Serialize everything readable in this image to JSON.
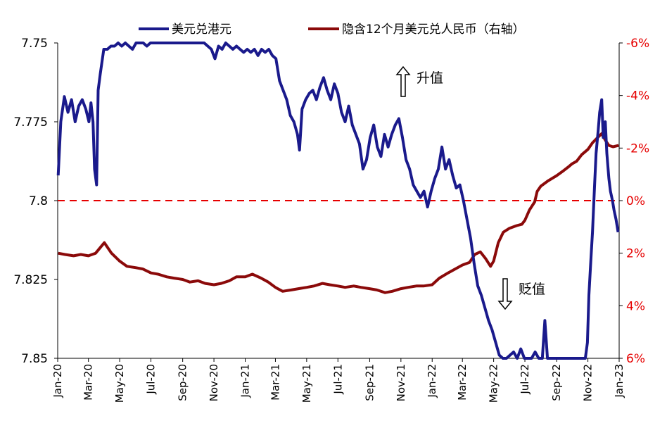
{
  "chart_data": {
    "type": "line",
    "legend": {
      "placement": "top",
      "entries": [
        "美元兑港元",
        "隐含12个月美元兑人民币（右轴）"
      ]
    },
    "colors": {
      "usdhkd": "#1a1a8c",
      "implied": "#8b0a0a",
      "zero_line": "#e60000",
      "right_axis_text": "#e60000"
    },
    "left_axis": {
      "ylim": [
        7.75,
        7.85
      ],
      "inverted": true,
      "ticks": [
        7.75,
        7.775,
        7.8,
        7.825,
        7.85
      ],
      "tick_labels": [
        "7.75",
        "7.775",
        "7.8",
        "7.825",
        "7.85"
      ]
    },
    "right_axis": {
      "ylim": [
        -6,
        6
      ],
      "inverted": true,
      "ticks": [
        -6,
        -4,
        -2,
        0,
        2,
        4,
        6
      ],
      "tick_labels": [
        "-6%",
        "-4%",
        "-2%",
        "0%",
        "2%",
        "4%",
        "6%"
      ]
    },
    "x_axis": {
      "range": [
        "2020-01",
        "2023-01"
      ],
      "tick_labels": [
        "Jan-20",
        "Mar-20",
        "May-20",
        "Jul-20",
        "Sep-20",
        "Nov-20",
        "Jan-21",
        "Mar-21",
        "May-21",
        "Jul-21",
        "Sep-21",
        "Nov-21",
        "Jan-22",
        "Mar-22",
        "May-22",
        "Jul-22",
        "Sep-22",
        "Nov-22",
        "Jan-23"
      ]
    },
    "reference_line": {
      "axis": "right",
      "value": 0
    },
    "annotations": [
      {
        "text": "升值",
        "arrow": "up"
      },
      {
        "text": "贬值",
        "arrow": "down"
      }
    ],
    "series": [
      {
        "name": "美元兑港元",
        "axis": "left",
        "points": [
          [
            "2020-01-02",
            7.792
          ],
          [
            "2020-01-07",
            7.775
          ],
          [
            "2020-01-14",
            7.767
          ],
          [
            "2020-01-21",
            7.772
          ],
          [
            "2020-01-28",
            7.768
          ],
          [
            "2020-02-04",
            7.775
          ],
          [
            "2020-02-11",
            7.77
          ],
          [
            "2020-02-18",
            7.768
          ],
          [
            "2020-02-25",
            7.771
          ],
          [
            "2020-03-02",
            7.775
          ],
          [
            "2020-03-06",
            7.769
          ],
          [
            "2020-03-10",
            7.775
          ],
          [
            "2020-03-13",
            7.79
          ],
          [
            "2020-03-17",
            7.795
          ],
          [
            "2020-03-20",
            7.765
          ],
          [
            "2020-03-24",
            7.76
          ],
          [
            "2020-03-31",
            7.752
          ],
          [
            "2020-04-07",
            7.752
          ],
          [
            "2020-04-14",
            7.751
          ],
          [
            "2020-04-21",
            7.751
          ],
          [
            "2020-04-28",
            7.75
          ],
          [
            "2020-05-05",
            7.751
          ],
          [
            "2020-05-12",
            7.75
          ],
          [
            "2020-05-19",
            7.751
          ],
          [
            "2020-05-26",
            7.752
          ],
          [
            "2020-06-02",
            7.75
          ],
          [
            "2020-06-09",
            7.75
          ],
          [
            "2020-06-16",
            7.75
          ],
          [
            "2020-06-23",
            7.751
          ],
          [
            "2020-06-30",
            7.75
          ],
          [
            "2020-07-07",
            7.75
          ],
          [
            "2020-07-14",
            7.75
          ],
          [
            "2020-07-21",
            7.75
          ],
          [
            "2020-07-28",
            7.75
          ],
          [
            "2020-08-04",
            7.75
          ],
          [
            "2020-08-18",
            7.75
          ],
          [
            "2020-09-01",
            7.75
          ],
          [
            "2020-09-15",
            7.75
          ],
          [
            "2020-09-29",
            7.75
          ],
          [
            "2020-10-13",
            7.75
          ],
          [
            "2020-10-27",
            7.752
          ],
          [
            "2020-11-03",
            7.755
          ],
          [
            "2020-11-10",
            7.751
          ],
          [
            "2020-11-17",
            7.752
          ],
          [
            "2020-11-24",
            7.75
          ],
          [
            "2020-12-01",
            7.751
          ],
          [
            "2020-12-08",
            7.752
          ],
          [
            "2020-12-15",
            7.751
          ],
          [
            "2020-12-22",
            7.752
          ],
          [
            "2020-12-29",
            7.753
          ],
          [
            "2021-01-05",
            7.752
          ],
          [
            "2021-01-12",
            7.753
          ],
          [
            "2021-01-19",
            7.752
          ],
          [
            "2021-01-26",
            7.754
          ],
          [
            "2021-02-02",
            7.752
          ],
          [
            "2021-02-09",
            7.753
          ],
          [
            "2021-02-16",
            7.752
          ],
          [
            "2021-02-23",
            7.754
          ],
          [
            "2021-03-02",
            7.755
          ],
          [
            "2021-03-09",
            7.762
          ],
          [
            "2021-03-16",
            7.765
          ],
          [
            "2021-03-23",
            7.768
          ],
          [
            "2021-03-30",
            7.773
          ],
          [
            "2021-04-06",
            7.775
          ],
          [
            "2021-04-13",
            7.779
          ],
          [
            "2021-04-17",
            7.784
          ],
          [
            "2021-04-22",
            7.771
          ],
          [
            "2021-04-29",
            7.768
          ],
          [
            "2021-05-06",
            7.766
          ],
          [
            "2021-05-13",
            7.765
          ],
          [
            "2021-05-20",
            7.768
          ],
          [
            "2021-05-27",
            7.764
          ],
          [
            "2021-06-03",
            7.761
          ],
          [
            "2021-06-10",
            7.765
          ],
          [
            "2021-06-17",
            7.768
          ],
          [
            "2021-06-24",
            7.763
          ],
          [
            "2021-07-01",
            7.766
          ],
          [
            "2021-07-08",
            7.772
          ],
          [
            "2021-07-15",
            7.775
          ],
          [
            "2021-07-22",
            7.77
          ],
          [
            "2021-07-29",
            7.776
          ],
          [
            "2021-08-05",
            7.779
          ],
          [
            "2021-08-12",
            7.782
          ],
          [
            "2021-08-19",
            7.79
          ],
          [
            "2021-08-26",
            7.787
          ],
          [
            "2021-09-02",
            7.78
          ],
          [
            "2021-09-09",
            7.776
          ],
          [
            "2021-09-16",
            7.783
          ],
          [
            "2021-09-23",
            7.786
          ],
          [
            "2021-09-30",
            7.779
          ],
          [
            "2021-10-07",
            7.783
          ],
          [
            "2021-10-14",
            7.779
          ],
          [
            "2021-10-21",
            7.776
          ],
          [
            "2021-10-28",
            7.774
          ],
          [
            "2021-11-04",
            7.78
          ],
          [
            "2021-11-11",
            7.787
          ],
          [
            "2021-11-18",
            7.79
          ],
          [
            "2021-11-25",
            7.795
          ],
          [
            "2021-12-02",
            7.797
          ],
          [
            "2021-12-09",
            7.799
          ],
          [
            "2021-12-16",
            7.797
          ],
          [
            "2021-12-23",
            7.802
          ],
          [
            "2021-12-30",
            7.797
          ],
          [
            "2022-01-06",
            7.793
          ],
          [
            "2022-01-13",
            7.79
          ],
          [
            "2022-01-20",
            7.783
          ],
          [
            "2022-01-27",
            7.79
          ],
          [
            "2022-02-03",
            7.787
          ],
          [
            "2022-02-10",
            7.792
          ],
          [
            "2022-02-17",
            7.796
          ],
          [
            "2022-02-24",
            7.795
          ],
          [
            "2022-03-03",
            7.8
          ],
          [
            "2022-03-10",
            7.806
          ],
          [
            "2022-03-17",
            7.812
          ],
          [
            "2022-03-24",
            7.82
          ],
          [
            "2022-03-31",
            7.827
          ],
          [
            "2022-04-07",
            7.83
          ],
          [
            "2022-04-14",
            7.834
          ],
          [
            "2022-04-21",
            7.838
          ],
          [
            "2022-04-28",
            7.841
          ],
          [
            "2022-05-05",
            7.845
          ],
          [
            "2022-05-12",
            7.849
          ],
          [
            "2022-05-19",
            7.85
          ],
          [
            "2022-05-26",
            7.85
          ],
          [
            "2022-06-02",
            7.849
          ],
          [
            "2022-06-09",
            7.848
          ],
          [
            "2022-06-16",
            7.85
          ],
          [
            "2022-06-23",
            7.847
          ],
          [
            "2022-06-30",
            7.85
          ],
          [
            "2022-07-07",
            7.85
          ],
          [
            "2022-07-14",
            7.85
          ],
          [
            "2022-07-21",
            7.848
          ],
          [
            "2022-07-28",
            7.85
          ],
          [
            "2022-08-04",
            7.85
          ],
          [
            "2022-08-09",
            7.838
          ],
          [
            "2022-08-14",
            7.85
          ],
          [
            "2022-08-25",
            7.85
          ],
          [
            "2022-09-08",
            7.85
          ],
          [
            "2022-09-22",
            7.85
          ],
          [
            "2022-10-06",
            7.85
          ],
          [
            "2022-10-20",
            7.85
          ],
          [
            "2022-10-27",
            7.85
          ],
          [
            "2022-10-31",
            7.845
          ],
          [
            "2022-11-03",
            7.83
          ],
          [
            "2022-11-07",
            7.818
          ],
          [
            "2022-11-10",
            7.81
          ],
          [
            "2022-11-14",
            7.795
          ],
          [
            "2022-11-17",
            7.785
          ],
          [
            "2022-11-21",
            7.778
          ],
          [
            "2022-11-24",
            7.772
          ],
          [
            "2022-11-28",
            7.768
          ],
          [
            "2022-12-01",
            7.78
          ],
          [
            "2022-12-05",
            7.775
          ],
          [
            "2022-12-08",
            7.785
          ],
          [
            "2022-12-12",
            7.793
          ],
          [
            "2022-12-15",
            7.797
          ],
          [
            "2022-12-19",
            7.8
          ],
          [
            "2022-12-22",
            7.803
          ],
          [
            "2022-12-26",
            7.806
          ],
          [
            "2022-12-30",
            7.81
          ]
        ]
      },
      {
        "name": "隐含12个月美元兑人民币（右轴）",
        "axis": "right",
        "points": [
          [
            "2020-01-02",
            2.0
          ],
          [
            "2020-01-15",
            2.05
          ],
          [
            "2020-02-01",
            2.1
          ],
          [
            "2020-02-15",
            2.05
          ],
          [
            "2020-03-01",
            2.1
          ],
          [
            "2020-03-15",
            2.0
          ],
          [
            "2020-04-01",
            1.6
          ],
          [
            "2020-04-15",
            2.0
          ],
          [
            "2020-05-01",
            2.3
          ],
          [
            "2020-05-15",
            2.5
          ],
          [
            "2020-06-01",
            2.55
          ],
          [
            "2020-06-15",
            2.6
          ],
          [
            "2020-07-01",
            2.75
          ],
          [
            "2020-07-15",
            2.8
          ],
          [
            "2020-08-01",
            2.9
          ],
          [
            "2020-08-15",
            2.95
          ],
          [
            "2020-09-01",
            3.0
          ],
          [
            "2020-09-15",
            3.1
          ],
          [
            "2020-10-01",
            3.05
          ],
          [
            "2020-10-15",
            3.15
          ],
          [
            "2020-11-01",
            3.2
          ],
          [
            "2020-11-15",
            3.15
          ],
          [
            "2020-12-01",
            3.05
          ],
          [
            "2020-12-15",
            2.9
          ],
          [
            "2021-01-01",
            2.9
          ],
          [
            "2021-01-15",
            2.8
          ],
          [
            "2021-02-01",
            2.95
          ],
          [
            "2021-02-15",
            3.1
          ],
          [
            "2021-03-01",
            3.3
          ],
          [
            "2021-03-15",
            3.45
          ],
          [
            "2021-04-01",
            3.4
          ],
          [
            "2021-04-15",
            3.35
          ],
          [
            "2021-05-01",
            3.3
          ],
          [
            "2021-05-15",
            3.25
          ],
          [
            "2021-06-01",
            3.15
          ],
          [
            "2021-06-15",
            3.2
          ],
          [
            "2021-07-01",
            3.25
          ],
          [
            "2021-07-15",
            3.3
          ],
          [
            "2021-08-01",
            3.25
          ],
          [
            "2021-08-15",
            3.3
          ],
          [
            "2021-09-01",
            3.35
          ],
          [
            "2021-09-15",
            3.4
          ],
          [
            "2021-10-01",
            3.5
          ],
          [
            "2021-10-15",
            3.45
          ],
          [
            "2021-11-01",
            3.35
          ],
          [
            "2021-11-15",
            3.3
          ],
          [
            "2021-12-01",
            3.25
          ],
          [
            "2021-12-15",
            3.25
          ],
          [
            "2022-01-01",
            3.2
          ],
          [
            "2022-01-15",
            2.95
          ],
          [
            "2022-02-01",
            2.75
          ],
          [
            "2022-02-15",
            2.6
          ],
          [
            "2022-03-01",
            2.45
          ],
          [
            "2022-03-15",
            2.35
          ],
          [
            "2022-03-25",
            2.05
          ],
          [
            "2022-04-05",
            1.95
          ],
          [
            "2022-04-15",
            2.2
          ],
          [
            "2022-04-25",
            2.5
          ],
          [
            "2022-05-01",
            2.3
          ],
          [
            "2022-05-10",
            1.6
          ],
          [
            "2022-05-20",
            1.2
          ],
          [
            "2022-06-01",
            1.05
          ],
          [
            "2022-06-15",
            0.95
          ],
          [
            "2022-06-25",
            0.9
          ],
          [
            "2022-07-01",
            0.75
          ],
          [
            "2022-07-10",
            0.35
          ],
          [
            "2022-07-20",
            0.05
          ],
          [
            "2022-07-25",
            -0.35
          ],
          [
            "2022-08-01",
            -0.55
          ],
          [
            "2022-08-15",
            -0.75
          ],
          [
            "2022-09-01",
            -0.95
          ],
          [
            "2022-09-15",
            -1.15
          ],
          [
            "2022-09-25",
            -1.3
          ],
          [
            "2022-10-01",
            -1.4
          ],
          [
            "2022-10-10",
            -1.5
          ],
          [
            "2022-10-20",
            -1.75
          ],
          [
            "2022-11-01",
            -1.95
          ],
          [
            "2022-11-10",
            -2.2
          ],
          [
            "2022-11-20",
            -2.4
          ],
          [
            "2022-11-28",
            -2.55
          ],
          [
            "2022-12-05",
            -2.3
          ],
          [
            "2022-12-12",
            -2.1
          ],
          [
            "2022-12-20",
            -2.05
          ],
          [
            "2022-12-31",
            -2.1
          ]
        ]
      }
    ]
  }
}
